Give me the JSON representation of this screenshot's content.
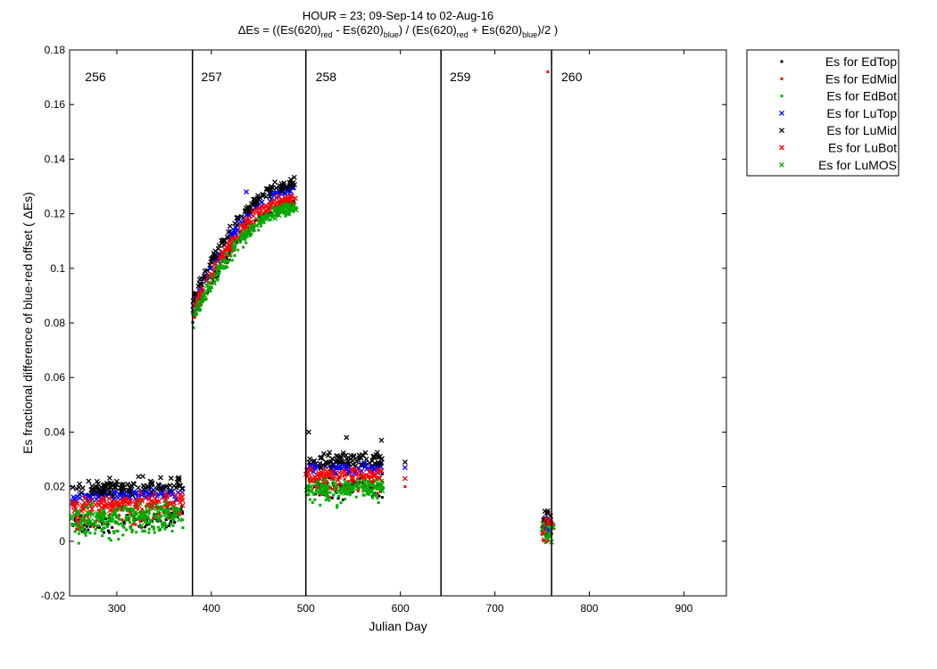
{
  "chart_data": {
    "type": "scatter",
    "title_line1": "HOUR = 23; 09-Sep-14 to 02-Aug-16",
    "title_line2": {
      "prefix": "ΔEs = ((Es(620)",
      "sub_red_1": "red",
      "minus": " - Es(620)",
      "sub_blue_1": "blue",
      "slash": ") / (Es(620)",
      "sub_red_2": "red",
      "plus": " + Es(620)",
      "sub_blue_2": "blue",
      "suffix": ")/2  )"
    },
    "xlabel": "Julian Day",
    "ylabel": "Es fractional difference of blue-red offset ( ΔEs)",
    "xlim": [
      250,
      945
    ],
    "ylim": [
      -0.02,
      0.18
    ],
    "x_ticks": [
      300,
      400,
      500,
      600,
      700,
      800,
      900
    ],
    "x_tick_labels": [
      "300",
      "400",
      "500",
      "600",
      "700",
      "800",
      "900"
    ],
    "y_ticks": [
      -0.02,
      0,
      0.02,
      0.04,
      0.06,
      0.08,
      0.1,
      0.12,
      0.14,
      0.16,
      0.18
    ],
    "y_tick_labels": [
      "-0.02",
      "0",
      "0.02",
      "0.04",
      "0.06",
      "0.08",
      "0.1",
      "0.12",
      "0.14",
      "0.16",
      "0.18"
    ],
    "grid": false,
    "legend_placement": "outside-top-right",
    "vertical_lines": [
      380,
      500,
      643,
      760
    ],
    "section_labels": [
      {
        "label": "256",
        "x": 255
      },
      {
        "label": "257",
        "x": 378
      },
      {
        "label": "258",
        "x": 499
      },
      {
        "label": "259",
        "x": 641
      },
      {
        "label": "260",
        "x": 759
      }
    ],
    "series": [
      {
        "name": "Es for EdTop",
        "marker": "dot",
        "color": "#000000",
        "clusters": [
          {
            "x": [
              252,
              370
            ],
            "y": [
              0.006,
              0.01
            ],
            "spread": 0.006
          },
          {
            "x": [
              380,
              490
            ],
            "y": [
              0.081,
              0.123
            ],
            "spread": 0.004
          },
          {
            "x": [
              500,
              582
            ],
            "y": [
              0.02,
              0.02
            ],
            "spread": 0.006
          },
          {
            "x": [
              750,
              762
            ],
            "y": [
              0.003,
              0.003
            ],
            "spread": 0.008
          }
        ]
      },
      {
        "name": "Es for EdMid",
        "marker": "dot",
        "color": "#ff0000",
        "clusters": [
          {
            "x": [
              252,
              370
            ],
            "y": [
              0.008,
              0.011
            ],
            "spread": 0.006
          },
          {
            "x": [
              380,
              490
            ],
            "y": [
              0.082,
              0.124
            ],
            "spread": 0.004
          },
          {
            "x": [
              500,
              582
            ],
            "y": [
              0.021,
              0.021
            ],
            "spread": 0.006
          },
          {
            "x": [
              750,
              762
            ],
            "y": [
              0.004,
              0.004
            ],
            "spread": 0.007
          }
        ],
        "points": [
          {
            "x": 756,
            "y": 0.172
          },
          {
            "x": 605,
            "y": 0.02
          }
        ]
      },
      {
        "name": "Es for EdBot",
        "marker": "dot",
        "color": "#00aa00",
        "clusters": [
          {
            "x": [
              252,
              370
            ],
            "y": [
              0.004,
              0.007
            ],
            "spread": 0.006
          },
          {
            "x": [
              380,
              490
            ],
            "y": [
              0.08,
              0.121
            ],
            "spread": 0.004
          },
          {
            "x": [
              500,
              582
            ],
            "y": [
              0.017,
              0.018
            ],
            "spread": 0.006
          },
          {
            "x": [
              750,
              762
            ],
            "y": [
              0.002,
              0.002
            ],
            "spread": 0.006
          }
        ]
      },
      {
        "name": "Es for LuTop",
        "marker": "x",
        "color": "#0000ff",
        "clusters": [
          {
            "x": [
              252,
              370
            ],
            "y": [
              0.016,
              0.018
            ],
            "spread": 0.003
          },
          {
            "x": [
              380,
              490
            ],
            "y": [
              0.086,
              0.129
            ],
            "spread": 0.003
          },
          {
            "x": [
              500,
              582
            ],
            "y": [
              0.027,
              0.027
            ],
            "spread": 0.003
          },
          {
            "x": [
              750,
              762
            ],
            "y": [
              0.006,
              0.006
            ],
            "spread": 0.005
          }
        ],
        "points": [
          {
            "x": 605,
            "y": 0.027
          },
          {
            "x": 437,
            "y": 0.128
          }
        ]
      },
      {
        "name": "Es for LuMid",
        "marker": "x",
        "color": "#000000",
        "clusters": [
          {
            "x": [
              252,
              370
            ],
            "y": [
              0.019,
              0.021
            ],
            "spread": 0.004
          },
          {
            "x": [
              380,
              490
            ],
            "y": [
              0.089,
              0.131
            ],
            "spread": 0.003
          },
          {
            "x": [
              500,
              582
            ],
            "y": [
              0.03,
              0.03
            ],
            "spread": 0.004
          },
          {
            "x": [
              750,
              762
            ],
            "y": [
              0.009,
              0.009
            ],
            "spread": 0.004
          }
        ],
        "points": [
          {
            "x": 605,
            "y": 0.029
          },
          {
            "x": 503,
            "y": 0.04
          },
          {
            "x": 543,
            "y": 0.038
          },
          {
            "x": 580,
            "y": 0.037
          }
        ]
      },
      {
        "name": "Es for LuBot",
        "marker": "x",
        "color": "#ff0000",
        "clusters": [
          {
            "x": [
              252,
              370
            ],
            "y": [
              0.013,
              0.015
            ],
            "spread": 0.004
          },
          {
            "x": [
              380,
              490
            ],
            "y": [
              0.084,
              0.126
            ],
            "spread": 0.003
          },
          {
            "x": [
              500,
              582
            ],
            "y": [
              0.024,
              0.024
            ],
            "spread": 0.004
          },
          {
            "x": [
              750,
              762
            ],
            "y": [
              0.005,
              0.005
            ],
            "spread": 0.005
          }
        ],
        "points": [
          {
            "x": 605,
            "y": 0.023
          }
        ]
      },
      {
        "name": "Es for LuMOS",
        "marker": "x",
        "color": "#00aa00",
        "clusters": [
          {
            "x": [
              252,
              370
            ],
            "y": [
              0.009,
              0.011
            ],
            "spread": 0.005
          },
          {
            "x": [
              380,
              490
            ],
            "y": [
              0.082,
              0.122
            ],
            "spread": 0.003
          },
          {
            "x": [
              500,
              582
            ],
            "y": [
              0.02,
              0.02
            ],
            "spread": 0.004
          },
          {
            "x": [
              750,
              762
            ],
            "y": [
              0.003,
              0.003
            ],
            "spread": 0.005
          }
        ]
      }
    ]
  }
}
